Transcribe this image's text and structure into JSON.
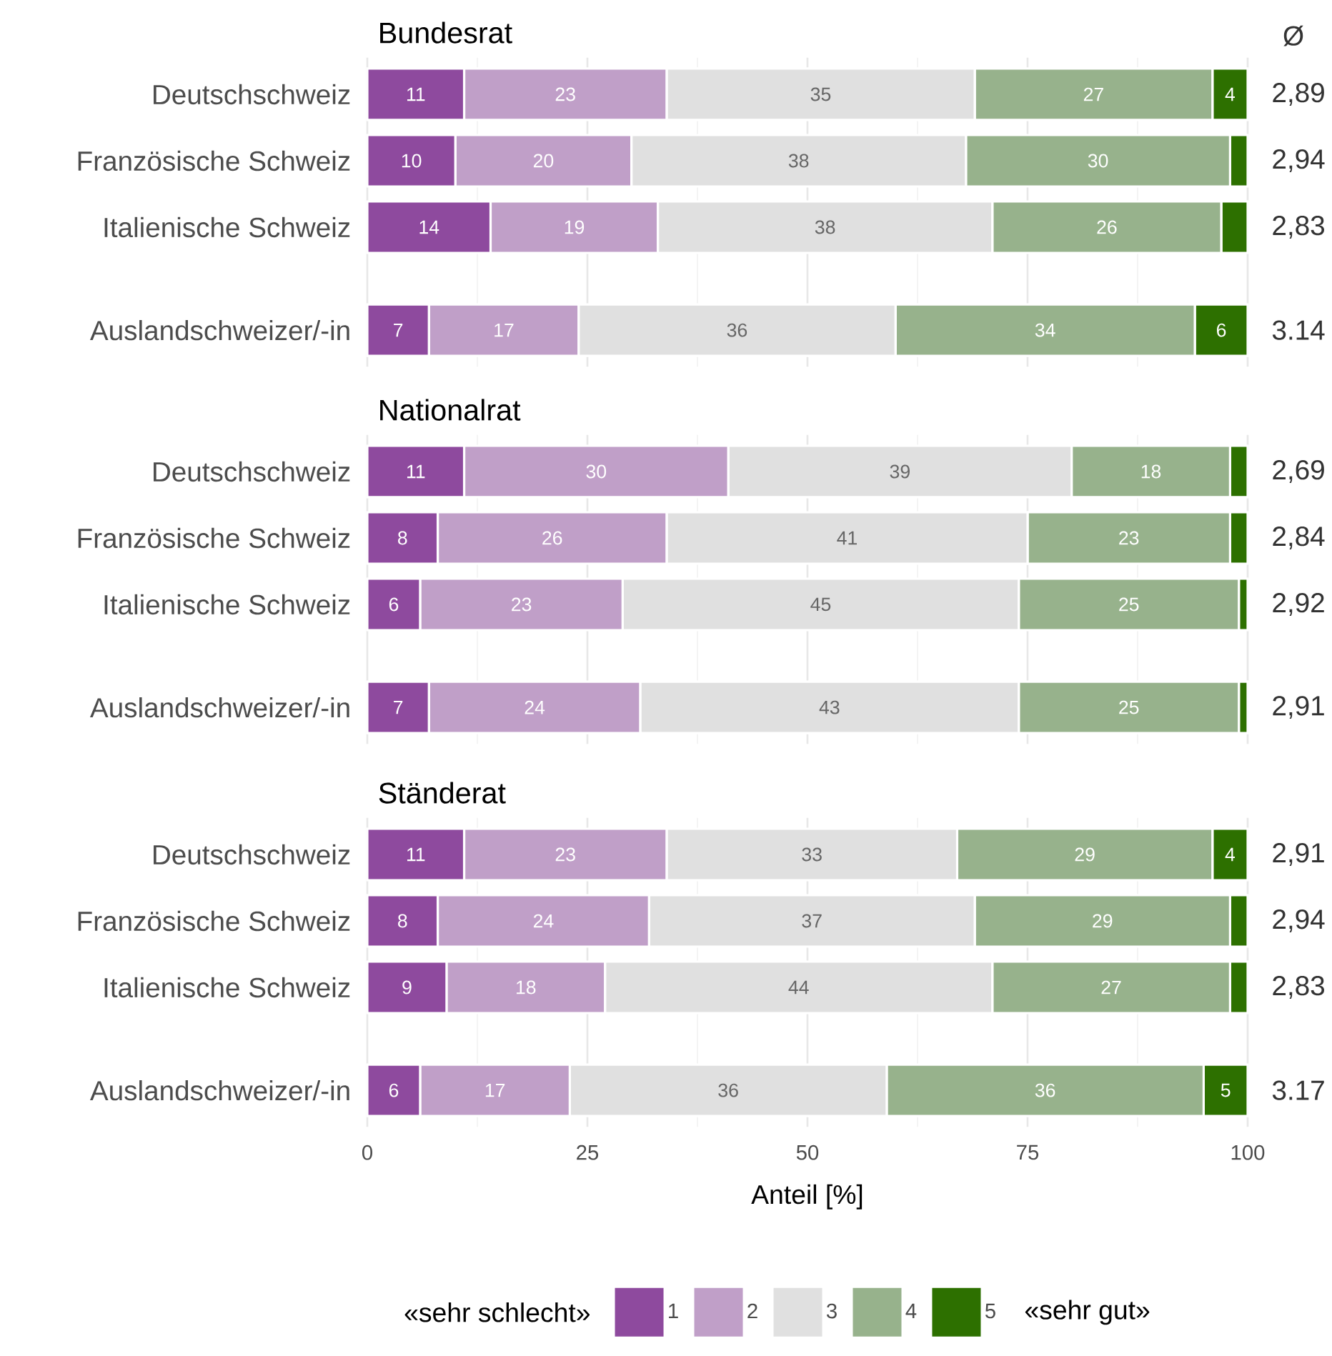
{
  "chart_data": [
    {
      "type": "bar",
      "orientation": "horizontal",
      "stacked": true,
      "title": "Bundesrat",
      "categories": [
        "Deutschschweiz",
        "Französische Schweiz",
        "Italienische Schweiz",
        "Auslandschweizer/-in"
      ],
      "xlim": [
        0,
        100
      ],
      "xticks": [
        0,
        25,
        50,
        75,
        100
      ],
      "tick_labels": "y",
      "grid": "x",
      "series": [
        {
          "color": "#8e4a9e",
          "values": [
            11,
            10,
            14,
            7
          ],
          "value_labels": [
            "11",
            "10",
            "14",
            "7"
          ]
        },
        {
          "color": "#c09fc8",
          "values": [
            23,
            20,
            19,
            17
          ],
          "value_labels": [
            "23",
            "20",
            "19",
            "17"
          ]
        },
        {
          "color": "#e0e0e0",
          "values": [
            35,
            38,
            38,
            36
          ],
          "value_labels": [
            "35",
            "38",
            "38",
            "36"
          ]
        },
        {
          "color": "#97b28c",
          "values": [
            27,
            30,
            26,
            34
          ],
          "value_labels": [
            "27",
            "30",
            "26",
            "34"
          ]
        },
        {
          "color": "#2d7000",
          "values": [
            4,
            2,
            3,
            6
          ],
          "value_labels": [
            "4",
            null,
            null,
            "6"
          ]
        }
      ],
      "annotations": [
        "Ø",
        "2,89",
        "2,94",
        "2,83",
        "3.14"
      ]
    },
    {
      "type": "bar",
      "orientation": "horizontal",
      "stacked": true,
      "title": "Nationalrat",
      "categories": [
        "Deutschschweiz",
        "Französische Schweiz",
        "Italienische Schweiz",
        "Auslandschweizer/-in"
      ],
      "xlim": [
        0,
        100
      ],
      "xticks": [
        0,
        25,
        50,
        75,
        100
      ],
      "tick_labels": "y",
      "grid": "x",
      "series": [
        {
          "color": "#8e4a9e",
          "values": [
            11,
            8,
            6,
            7
          ],
          "value_labels": [
            "11",
            "8",
            "6",
            "7"
          ]
        },
        {
          "color": "#c09fc8",
          "values": [
            30,
            26,
            23,
            24
          ],
          "value_labels": [
            "30",
            "26",
            "23",
            "24"
          ]
        },
        {
          "color": "#e0e0e0",
          "values": [
            39,
            41,
            45,
            43
          ],
          "value_labels": [
            "39",
            "41",
            "45",
            "43"
          ]
        },
        {
          "color": "#97b28c",
          "values": [
            18,
            23,
            25,
            25
          ],
          "value_labels": [
            "18",
            "23",
            "25",
            "25"
          ]
        },
        {
          "color": "#2d7000",
          "values": [
            2,
            2,
            1,
            1
          ],
          "value_labels": [
            null,
            null,
            null,
            null
          ]
        }
      ],
      "annotations": [
        "2,69",
        "2,84",
        "2,92",
        "2,91"
      ]
    },
    {
      "type": "bar",
      "orientation": "horizontal",
      "stacked": true,
      "title": "Ständerat",
      "categories": [
        "Deutschschweiz",
        "Französische Schweiz",
        "Italienische Schweiz",
        "Auslandschweizer/-in"
      ],
      "xlim": [
        0,
        100
      ],
      "xticks": [
        0,
        25,
        50,
        75,
        100
      ],
      "xlabel": "Anteil [%]",
      "grid": "x",
      "legend": "bottom",
      "series": [
        {
          "name": "1",
          "color": "#8e4a9e",
          "values": [
            11,
            8,
            9,
            6
          ],
          "value_labels": [
            "11",
            "8",
            "9",
            "6"
          ]
        },
        {
          "name": "2",
          "color": "#c09fc8",
          "values": [
            23,
            24,
            18,
            17
          ],
          "value_labels": [
            "23",
            "24",
            "18",
            "17"
          ]
        },
        {
          "name": "3",
          "color": "#e0e0e0",
          "values": [
            33,
            37,
            44,
            36
          ],
          "value_labels": [
            "33",
            "37",
            "44",
            "36"
          ]
        },
        {
          "name": "4",
          "color": "#97b28c",
          "values": [
            29,
            29,
            27,
            36
          ],
          "value_labels": [
            "29",
            "29",
            "27",
            "36"
          ]
        },
        {
          "name": "5",
          "color": "#2d7000",
          "values": [
            4,
            2,
            2,
            5
          ],
          "value_labels": [
            "4",
            null,
            null,
            "5"
          ]
        }
      ],
      "annotations": [
        "«sehr schlecht»",
        "«sehr gut»",
        "2,91",
        "2,94",
        "2,83",
        "3.17"
      ]
    }
  ]
}
